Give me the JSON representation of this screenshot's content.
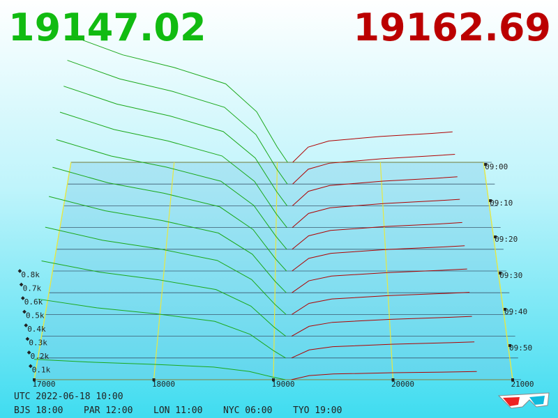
{
  "chart_data": {
    "type": "depth3d",
    "bid_price": 19147.02,
    "ask_price": 19162.69,
    "bid_color": "#1aa81a",
    "ask_color": "#b00000",
    "xlim": [
      17000,
      21000
    ],
    "xticks": [
      17000,
      18000,
      19000,
      20000,
      21000
    ],
    "tlim": [
      0,
      60
    ],
    "tticks": [
      {
        "value": 0,
        "label": "09:00"
      },
      {
        "value": 10,
        "label": "09:10"
      },
      {
        "value": 20,
        "label": "09:20"
      },
      {
        "value": 30,
        "label": "09:30"
      },
      {
        "value": 40,
        "label": "09:40"
      },
      {
        "value": 50,
        "label": "09:50"
      }
    ],
    "yticks": [
      {
        "value": 100,
        "label": "0.1k"
      },
      {
        "value": 200,
        "label": "0.2k"
      },
      {
        "value": 300,
        "label": "0.3k"
      },
      {
        "value": 400,
        "label": "0.4k"
      },
      {
        "value": 500,
        "label": "0.5k"
      },
      {
        "value": 600,
        "label": "0.6k"
      },
      {
        "value": 700,
        "label": "0.7k"
      },
      {
        "value": 800,
        "label": "0.8k"
      }
    ],
    "bid_prices": [
      17000,
      17500,
      18000,
      18500,
      18800,
      19000,
      19100
    ],
    "ask_prices": [
      19150,
      19300,
      19500,
      20000,
      20500,
      20700
    ],
    "snapshots": [
      {
        "t": 0,
        "bid": [
          1080,
          918,
          810,
          670,
          432,
          130,
          0
        ],
        "ask": [
          0,
          130,
          182,
          221,
          247,
          260
        ]
      },
      {
        "t": 6,
        "bid": [
          1040,
          884,
          780,
          645,
          416,
          125,
          0
        ],
        "ask": [
          0,
          125,
          175,
          213,
          238,
          250
        ]
      },
      {
        "t": 12,
        "bid": [
          990,
          842,
          743,
          614,
          396,
          119,
          0
        ],
        "ask": [
          0,
          120,
          168,
          204,
          228,
          240
        ]
      },
      {
        "t": 18,
        "bid": [
          940,
          799,
          705,
          583,
          376,
          113,
          0
        ],
        "ask": [
          0,
          115,
          161,
          196,
          219,
          230
        ]
      },
      {
        "t": 24,
        "bid": [
          880,
          748,
          660,
          546,
          352,
          106,
          0
        ],
        "ask": [
          0,
          108,
          151,
          183,
          204,
          215
        ]
      },
      {
        "t": 30,
        "bid": [
          820,
          697,
          615,
          508,
          328,
          98,
          0
        ],
        "ask": [
          0,
          100,
          140,
          170,
          190,
          200
        ]
      },
      {
        "t": 36,
        "bid": [
          750,
          638,
          563,
          465,
          300,
          90,
          0
        ],
        "ask": [
          0,
          93,
          130,
          157,
          176,
          185
        ]
      },
      {
        "t": 42,
        "bid": [
          670,
          570,
          503,
          415,
          268,
          80,
          0
        ],
        "ask": [
          0,
          85,
          119,
          145,
          162,
          170
        ]
      },
      {
        "t": 48,
        "bid": [
          570,
          485,
          428,
          353,
          228,
          68,
          0
        ],
        "ask": [
          0,
          75,
          105,
          128,
          143,
          150
        ]
      },
      {
        "t": 54,
        "bid": [
          440,
          374,
          330,
          273,
          176,
          53,
          0
        ],
        "ask": [
          0,
          60,
          84,
          102,
          114,
          120
        ]
      },
      {
        "t": 60,
        "bid": [
          150,
          128,
          113,
          93,
          60,
          18,
          0
        ],
        "ask": [
          0,
          30,
          42,
          51,
          57,
          60
        ]
      }
    ],
    "footer": {
      "utc": "UTC 2022-06-18 10:00",
      "zones": [
        "BJS 18:00",
        "PAR 12:00",
        "LON 11:00",
        "NYC 06:00",
        "TYO 19:00"
      ]
    }
  }
}
